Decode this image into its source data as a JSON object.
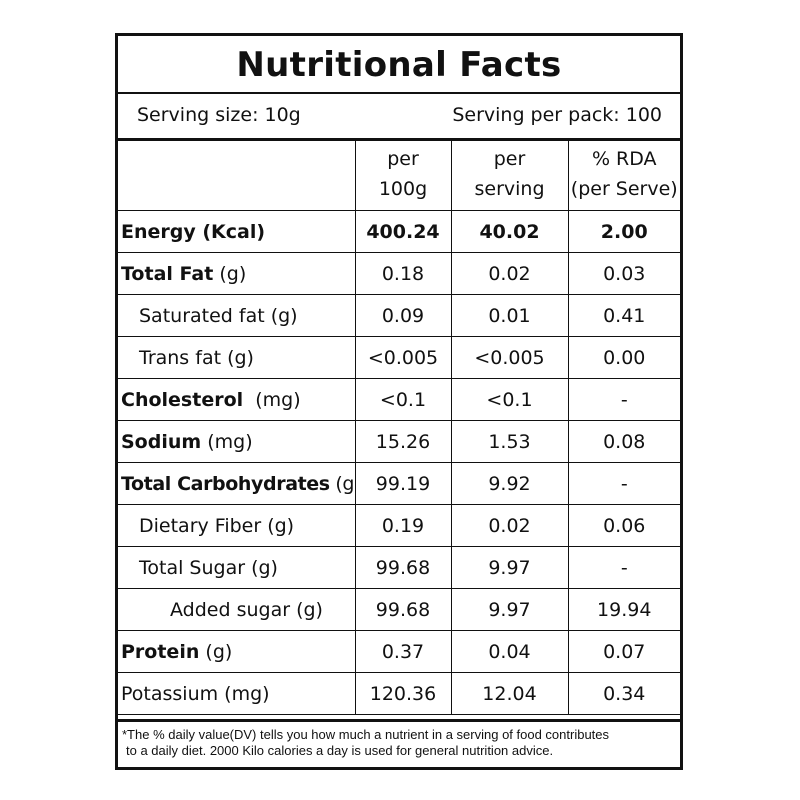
{
  "title": "Nutritional Facts",
  "serving": {
    "size": "Serving size: 10g",
    "per_pack": "Serving per pack: 100"
  },
  "headers": {
    "col1_line1": "per",
    "col1_line2": "100g",
    "col2_line1": "per",
    "col2_line2": "serving",
    "col3_line1": "% RDA",
    "col3_line2": "(per Serve)"
  },
  "rows": [
    {
      "name": "Energy (Kcal)",
      "unit": "",
      "per100": "400.24",
      "perServe": "40.02",
      "rda": "2.00"
    },
    {
      "name": "Total Fat",
      "unit": "(g)",
      "per100": "0.18",
      "perServe": "0.02",
      "rda": "0.03"
    },
    {
      "name": "Saturated fat (g)",
      "unit": "",
      "per100": "0.09",
      "perServe": "0.01",
      "rda": "0.41"
    },
    {
      "name": "Trans fat (g)",
      "unit": "",
      "per100": "<0.005",
      "perServe": "<0.005",
      "rda": "0.00"
    },
    {
      "name": "Cholesterol",
      "unit": "(mg)",
      "per100": "<0.1",
      "perServe": "<0.1",
      "rda": "-"
    },
    {
      "name": "Sodium",
      "unit": "(mg)",
      "per100": "15.26",
      "perServe": "1.53",
      "rda": "0.08"
    },
    {
      "name": "Total Carbohydrates",
      "unit": "(g)",
      "per100": "99.19",
      "perServe": "9.92",
      "rda": "-"
    },
    {
      "name": "Dietary Fiber (g)",
      "unit": "",
      "per100": "0.19",
      "perServe": "0.02",
      "rda": "0.06"
    },
    {
      "name": "Total Sugar (g)",
      "unit": "",
      "per100": "99.68",
      "perServe": "9.97",
      "rda": "-"
    },
    {
      "name": "Added sugar (g)",
      "unit": "",
      "per100": "99.68",
      "perServe": "9.97",
      "rda": "19.94"
    },
    {
      "name": "Protein",
      "unit": "(g)",
      "per100": "0.37",
      "perServe": "0.04",
      "rda": "0.07"
    },
    {
      "name": "Potassium (mg)",
      "unit": "",
      "per100": "120.36",
      "perServe": "12.04",
      "rda": "0.34"
    }
  ],
  "footnote": {
    "line1": "*The % daily value(DV) tells you how much a nutrient in a serving of food contributes",
    "line2": "to a daily diet. 2000 Kilo calories a day is used for general nutrition advice."
  }
}
